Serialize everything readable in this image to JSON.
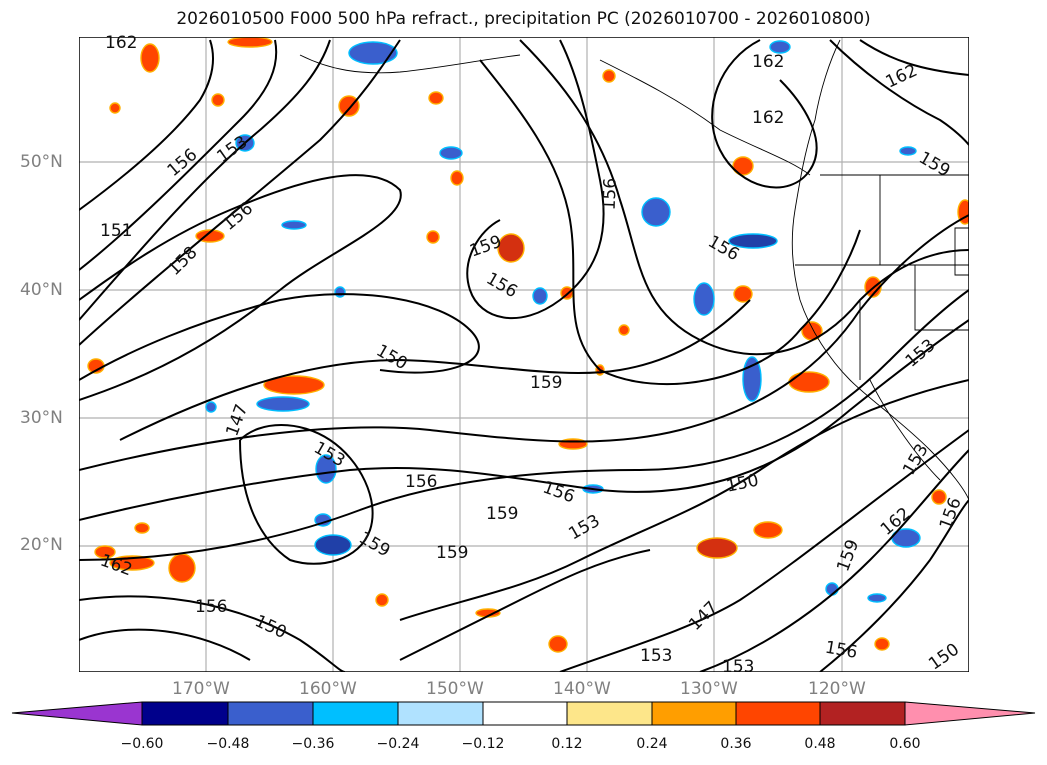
{
  "title": "2026010500 F000 500 hPa refract., precipitation PC (2026010700 - 2026010800)",
  "map": {
    "latitudes": [
      "50°N",
      "40°N",
      "30°N",
      "20°N"
    ],
    "longitudes": [
      "170°W",
      "160°W",
      "150°W",
      "140°W",
      "130°W",
      "120°W"
    ],
    "contour_labels": [
      "162",
      "162",
      "162",
      "162",
      "156",
      "153",
      "156",
      "151",
      "158",
      "159",
      "156",
      "156",
      "159",
      "156",
      "150",
      "159",
      "147",
      "153",
      "156",
      "150",
      "156",
      "159",
      "153",
      "162",
      "159",
      "156",
      "153",
      "147",
      "153",
      "150",
      "159",
      "162",
      "156",
      "153",
      "150",
      "159",
      "153",
      "156"
    ]
  },
  "colorbar": {
    "ticks": [
      "−0.60",
      "−0.48",
      "−0.36",
      "−0.24",
      "−0.12",
      "0.12",
      "0.24",
      "0.36",
      "0.48",
      "0.60"
    ],
    "colors": [
      "#9a35d0",
      "#00008b",
      "#3a5fcd",
      "#00bfff",
      "#b0e2ff",
      "#ffffff",
      "#fde68a",
      "#ff9e00",
      "#ff4500",
      "#b22222",
      "#ff8fae"
    ]
  }
}
